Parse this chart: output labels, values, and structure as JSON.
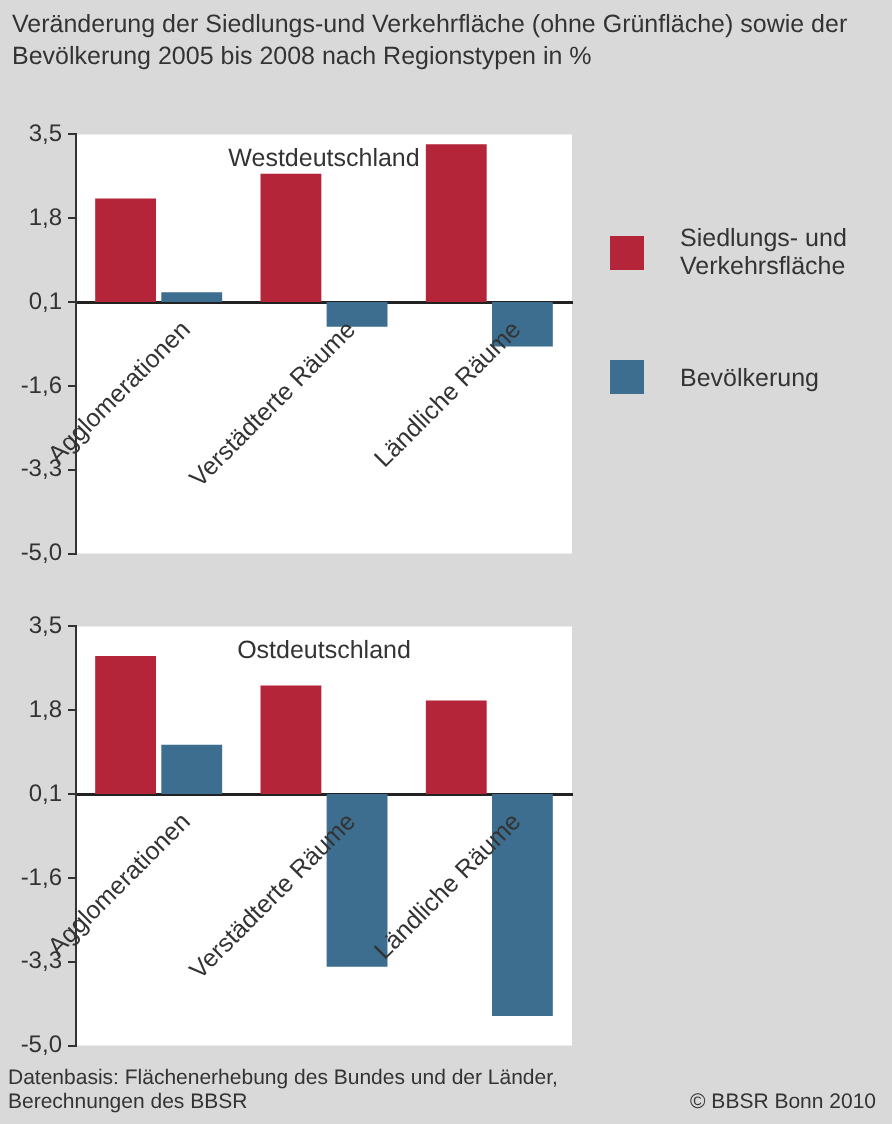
{
  "chart_data": [
    {
      "type": "bar",
      "title": "Veränderung der Siedlungs-und Verkehrfläche (ohne Grünfläche) sowie der Bevölkerung 2005 bis 2008 nach Regionstypen in %",
      "subtitle": "Westdeutschland",
      "categories": [
        "Agglomerationen",
        "Verstädterte Räume",
        "Ländliche Räume"
      ],
      "series": [
        {
          "name": "Siedlungs- und Verkehrsfläche",
          "color": "#b5253a",
          "base": [
            0.1,
            0.1,
            0.1
          ],
          "values": [
            2.1,
            2.6,
            3.2
          ]
        },
        {
          "name": "Bevölkerung",
          "color": "#3d6e8f",
          "base": [
            0.1,
            0.1,
            0.1
          ],
          "values": [
            0.2,
            -0.5,
            -0.9
          ]
        }
      ],
      "ylim": [
        -5.0,
        3.5
      ],
      "yticks": [
        {
          "value": 3.5,
          "label": "3,5"
        },
        {
          "value": 1.8,
          "label": "1,8"
        },
        {
          "value": 0.1,
          "label": "0,1"
        },
        {
          "value": -1.6,
          "label": "-1,6"
        },
        {
          "value": -3.3,
          "label": "-3,3"
        },
        {
          "value": -5.0,
          "label": "-5,0"
        }
      ],
      "grid": false,
      "legend": "right"
    },
    {
      "type": "bar",
      "subtitle": "Ostdeutschland",
      "categories": [
        "Agglomerationen",
        "Verstädterte Räume",
        "Ländliche Räume"
      ],
      "series": [
        {
          "color": "#b5253a",
          "base": [
            0.1,
            0.1,
            0.1
          ],
          "values": [
            2.8,
            2.2,
            1.9
          ]
        },
        {
          "color": "#3d6e8f",
          "base": [
            0.1,
            0.1,
            0.1
          ],
          "values": [
            1.0,
            -3.5,
            -4.5
          ]
        }
      ],
      "ylim": [
        -5.0,
        3.5
      ],
      "yticks": [
        {
          "value": 3.5,
          "label": "3,5"
        },
        {
          "value": 1.8,
          "label": "1,8"
        },
        {
          "value": 0.1,
          "label": "0,1"
        },
        {
          "value": -1.6,
          "label": "-1,6"
        },
        {
          "value": -3.3,
          "label": "-3,3"
        },
        {
          "value": -5.0,
          "label": "-5,0"
        }
      ],
      "grid": false,
      "annotations": [
        "Datenbasis: Flächenerhebung des Bundes und der Länder, Berechnungen des BBSR",
        "© BBSR Bonn 2010"
      ]
    }
  ]
}
